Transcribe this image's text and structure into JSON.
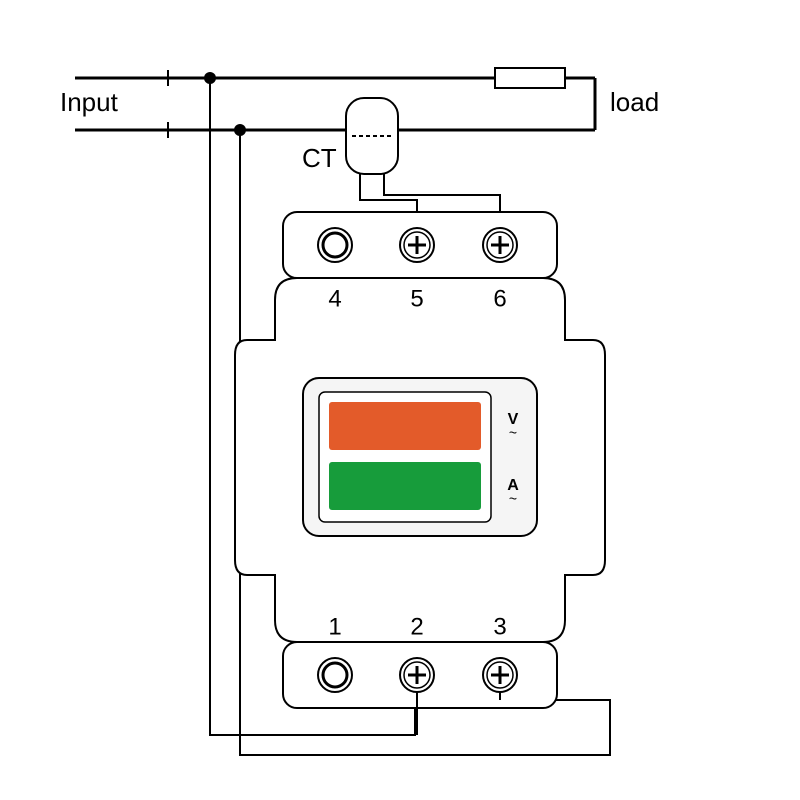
{
  "diagram": {
    "type": "wiring-diagram",
    "background_color": "#ffffff",
    "stroke_main": "#000000",
    "stroke_width_main": 3,
    "stroke_width_thin": 2,
    "labels": {
      "input": "Input",
      "load": "load",
      "ct": "CT",
      "terminal_1": "1",
      "terminal_2": "2",
      "terminal_3": "3",
      "terminal_4": "4",
      "terminal_5": "5",
      "terminal_6": "6",
      "volts": "V",
      "amps": "A"
    },
    "label_fontsize": 26,
    "terminal_fontsize": 24,
    "unit_fontsize": 16,
    "display": {
      "frame_fill": "#ffffff",
      "frame_stroke": "#000000",
      "voltage_bar_color": "#e35b2a",
      "current_bar_color": "#179c3b",
      "bezel_fill": "#f5f5f5"
    },
    "device_body_radius": 22,
    "terminal_circle_r": 17,
    "junction_r": 6
  }
}
